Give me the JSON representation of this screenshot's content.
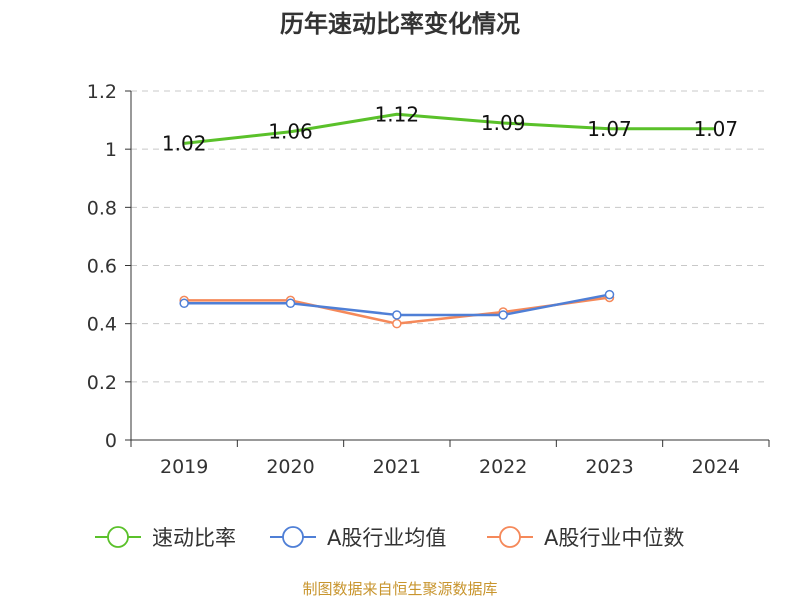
{
  "chart_data": {
    "type": "line",
    "title": "历年速动比率变化情况",
    "categories": [
      "2019",
      "2020",
      "2021",
      "2022",
      "2023",
      "2024"
    ],
    "ylim": [
      0,
      1.2
    ],
    "yticks": [
      "0",
      "0.2",
      "0.4",
      "0.6",
      "0.8",
      "1",
      "1.2"
    ],
    "grid": true,
    "legend_position": "bottom",
    "series": [
      {
        "name": "速动比率",
        "color": "#5ac12a",
        "values": [
          1.02,
          1.06,
          1.12,
          1.09,
          1.07,
          1.07
        ],
        "labels": [
          "1.02",
          "1.06",
          "1.12",
          "1.09",
          "1.07",
          "1.07"
        ]
      },
      {
        "name": "A股行业均值",
        "color": "#4f7fd6",
        "values": [
          0.47,
          0.47,
          0.43,
          0.43,
          0.5,
          null
        ]
      },
      {
        "name": "A股行业中位数",
        "color": "#f5895a",
        "values": [
          0.48,
          0.48,
          0.4,
          0.44,
          0.49,
          null
        ]
      }
    ],
    "source": "制图数据来自恒生聚源数据库"
  }
}
